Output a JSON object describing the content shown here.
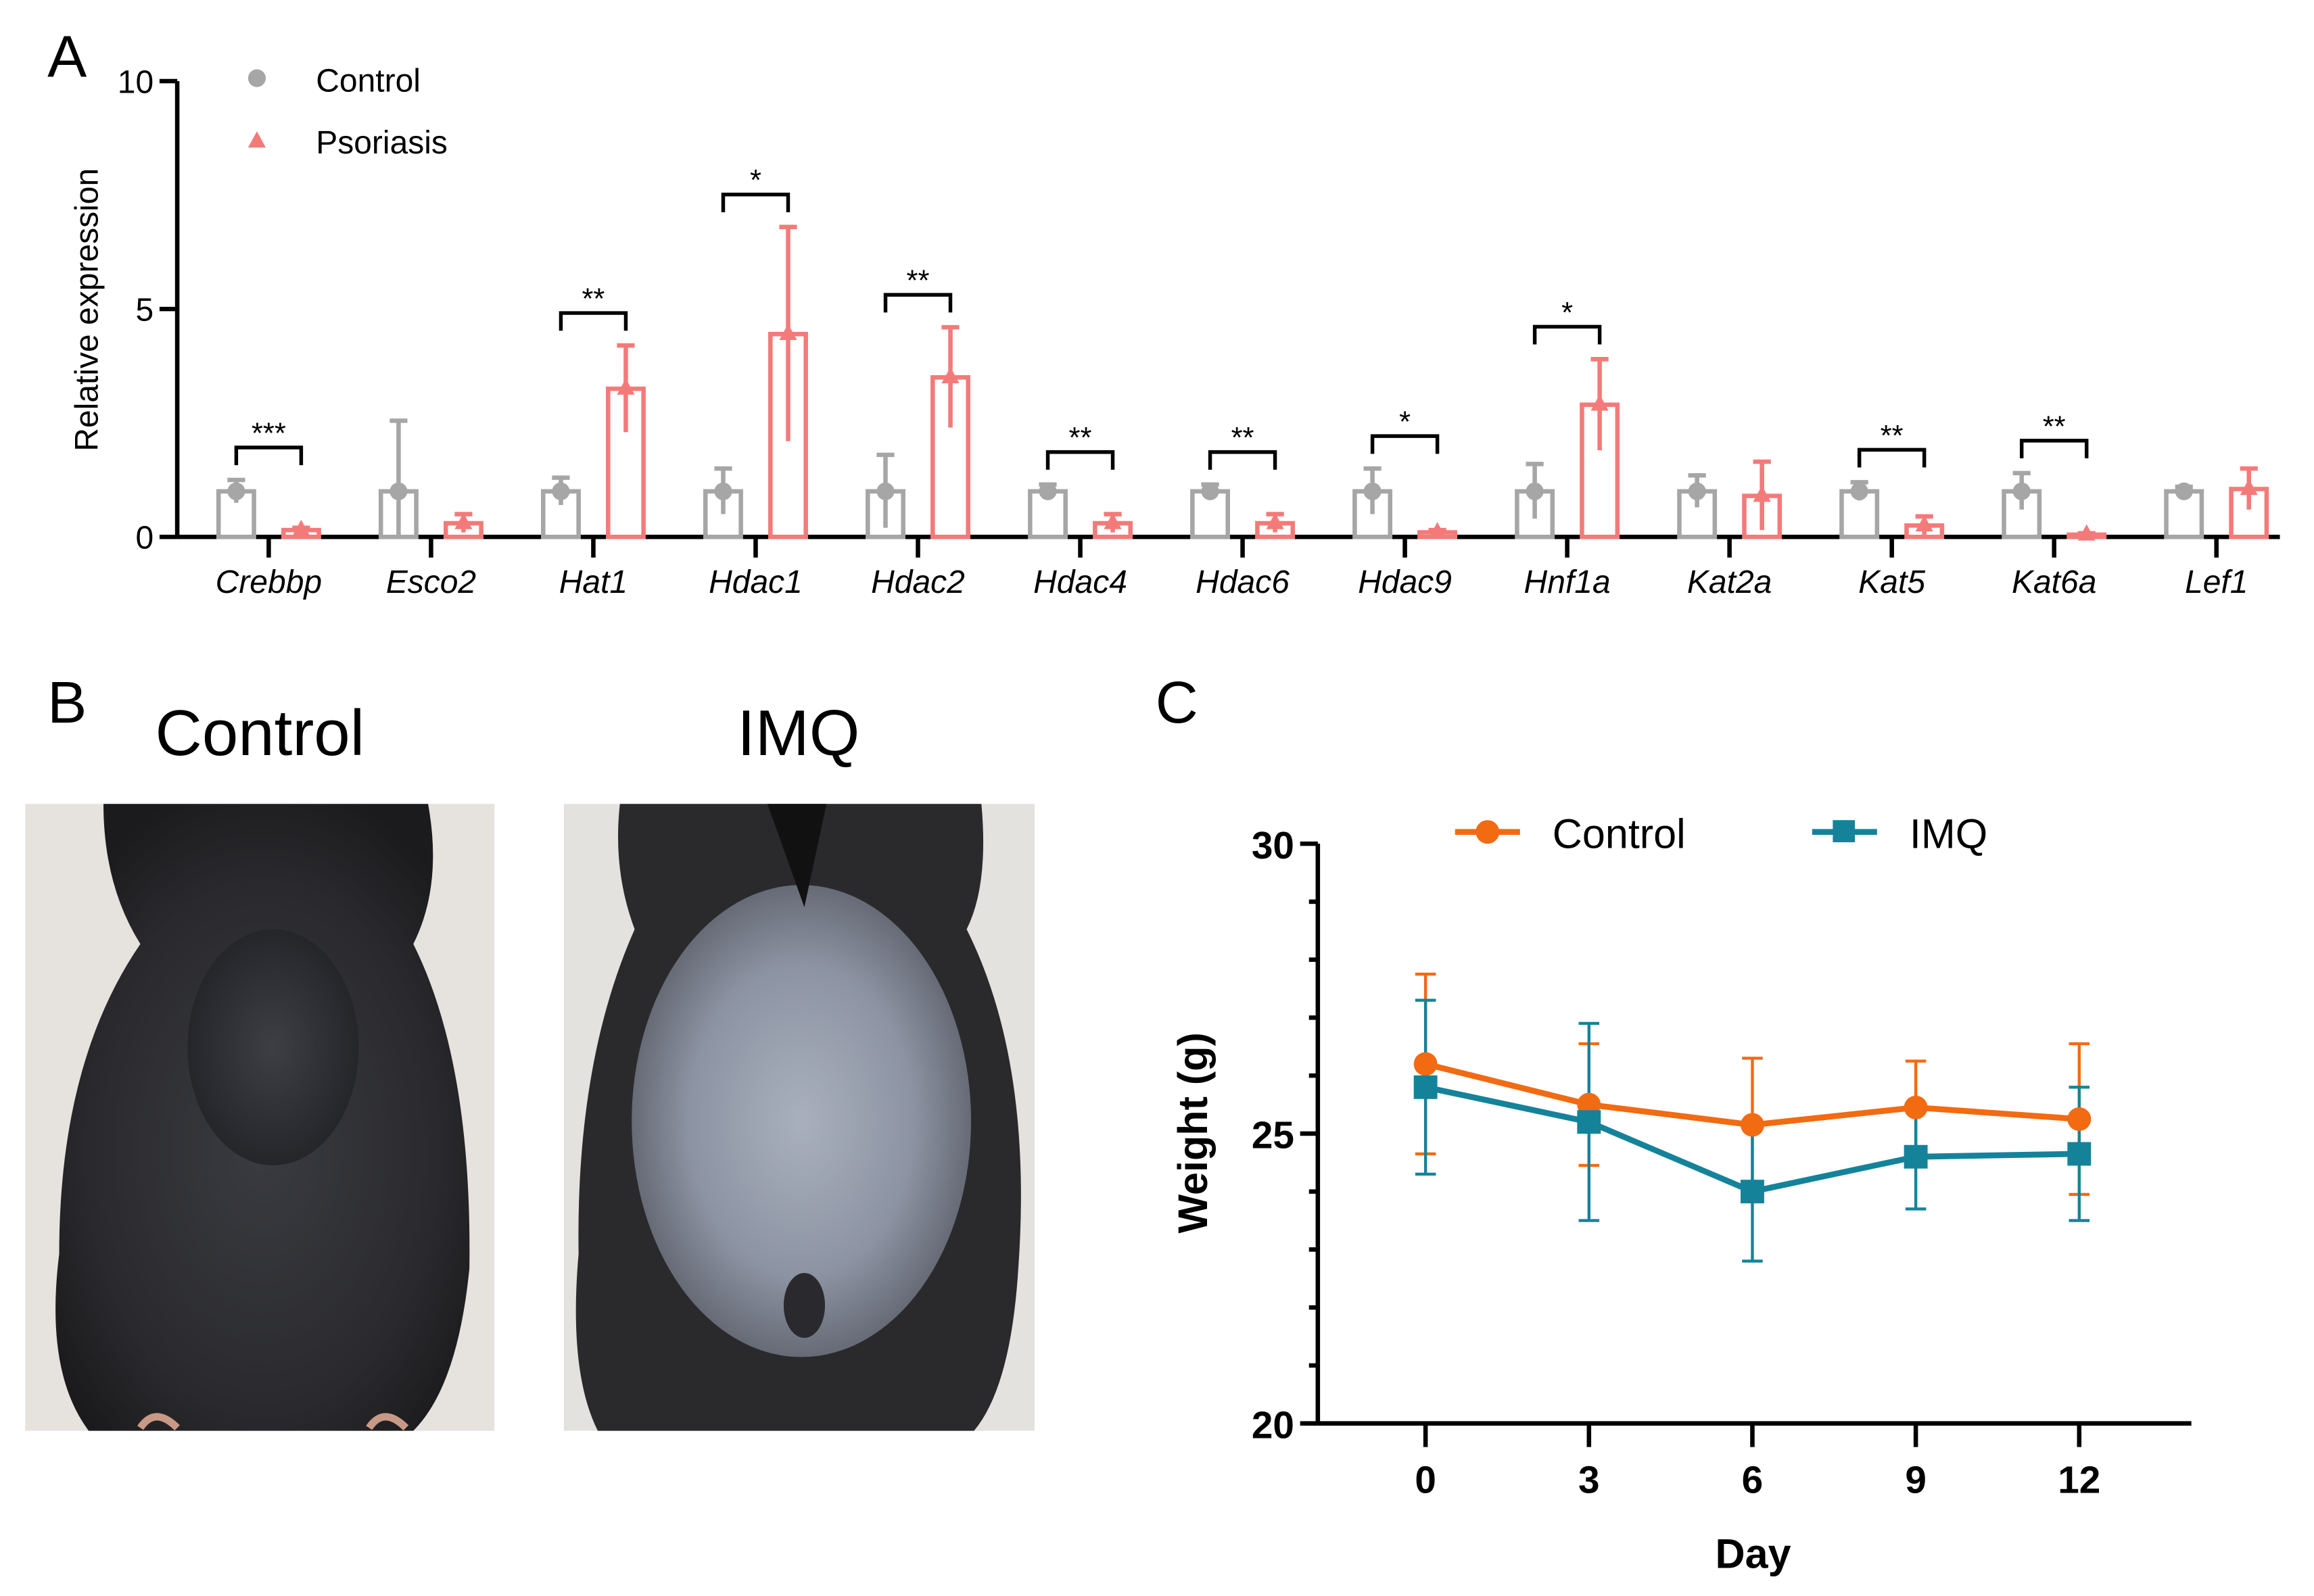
{
  "panel_labels": {
    "a": "A",
    "b": "B",
    "c": "C"
  },
  "photos": {
    "control_title": "Control",
    "imq_title": "IMQ"
  },
  "colors": {
    "control_bar": "#a6a6a6",
    "psoriasis_bar": "#f47a7a",
    "control_line": "#f26a12",
    "imq_line": "#14839a"
  },
  "chart_data": [
    {
      "type": "bar",
      "title": "",
      "xlabel": "",
      "ylabel": "Relative expression",
      "ylim": [
        0,
        10
      ],
      "yticks": [
        "0",
        "5",
        "10"
      ],
      "legend": {
        "placement": "top-left",
        "entries": [
          "Control",
          "Psoriasis"
        ]
      },
      "categories": [
        "Crebbp",
        "Esco2",
        "Hat1",
        "Hdac1",
        "Hdac2",
        "Hdac4",
        "Hdac6",
        "Hdac9",
        "Hnf1a",
        "Kat2a",
        "Kat5",
        "Kat6a",
        "Lef1"
      ],
      "series": [
        {
          "name": "Control",
          "values": [
            1.0,
            1.0,
            1.0,
            1.0,
            1.0,
            1.0,
            1.0,
            1.0,
            1.0,
            1.0,
            1.0,
            1.0,
            1.0
          ],
          "sd": [
            0.25,
            1.55,
            0.3,
            0.5,
            0.8,
            0.15,
            0.15,
            0.5,
            0.6,
            0.35,
            0.2,
            0.4,
            0.1
          ]
        },
        {
          "name": "Psoriasis",
          "values": [
            0.15,
            0.3,
            3.25,
            4.45,
            3.5,
            0.3,
            0.3,
            0.1,
            2.9,
            0.9,
            0.25,
            0.05,
            1.05
          ],
          "sd": [
            0.05,
            0.2,
            0.95,
            2.35,
            1.1,
            0.2,
            0.2,
            0.05,
            1.0,
            0.75,
            0.2,
            0.03,
            0.45
          ]
        }
      ],
      "significance": [
        "***",
        "",
        "**",
        "*",
        "**",
        "**",
        "**",
        "*",
        "*",
        "",
        "**",
        "**",
        ""
      ]
    },
    {
      "type": "line",
      "title": "",
      "xlabel": "Day",
      "ylabel": "Weight (g)",
      "ylim": [
        20,
        30
      ],
      "yticks": [
        "20",
        "25",
        "30"
      ],
      "x": [
        0,
        3,
        6,
        9,
        12
      ],
      "xticks": [
        "0",
        "3",
        "6",
        "9",
        "12"
      ],
      "legend": {
        "placement": "top",
        "entries": [
          "Control",
          "IMQ"
        ]
      },
      "series": [
        {
          "name": "Control",
          "values": [
            26.2,
            25.5,
            25.15,
            25.45,
            25.25
          ],
          "sd": [
            1.55,
            1.05,
            1.15,
            0.8,
            1.3
          ]
        },
        {
          "name": "IMQ",
          "values": [
            25.8,
            25.2,
            24.0,
            24.6,
            24.65
          ],
          "sd": [
            1.5,
            1.7,
            1.2,
            0.9,
            1.15
          ]
        }
      ]
    }
  ]
}
